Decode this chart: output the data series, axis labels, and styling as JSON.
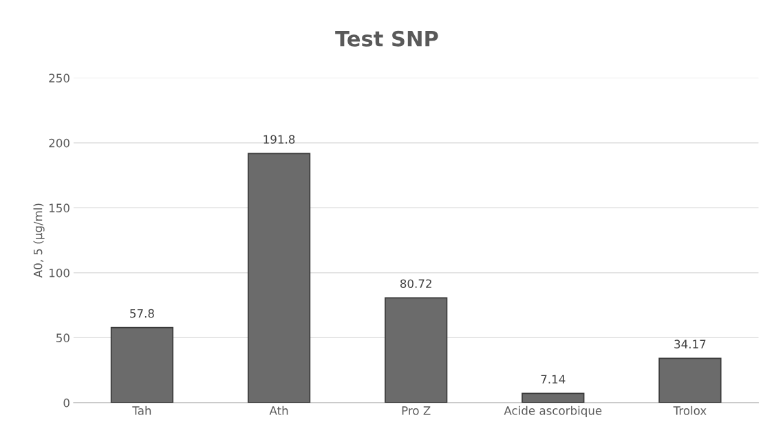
{
  "chart_data": {
    "type": "bar",
    "title": "Test SNP",
    "ylabel": "A0, 5 (µg/ml)",
    "categories": [
      "Tah",
      "Ath",
      "Pro Z",
      "Acide ascorbique",
      "Trolox"
    ],
    "values": [
      57.8,
      191.8,
      80.72,
      7.14,
      34.17
    ],
    "color": "#6b6b6b",
    "ylim": [
      0,
      250
    ],
    "yticks": [
      0,
      50,
      100,
      150,
      200,
      250
    ],
    "grid": "y",
    "data_labels": true
  }
}
